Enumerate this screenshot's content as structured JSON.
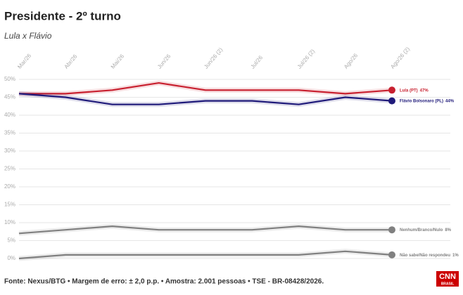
{
  "chart_data": {
    "type": "line",
    "title": "Presidente - 2º turno",
    "subtitle": "Lula x Flávio",
    "categories": [
      "Mar/26",
      "Abr/26",
      "Mai/26",
      "Jun/26",
      "Jun/26 (2)",
      "Jul/26",
      "Jul/26 (2)",
      "Ago/26",
      "Ago/26 (2)"
    ],
    "series": [
      {
        "name": "Lula (PT)",
        "color": "#c8202f",
        "values": [
          46,
          46,
          47,
          49,
          47,
          47,
          47,
          46,
          47
        ],
        "value_labels": [
          null,
          null,
          null,
          null,
          null,
          null,
          null,
          null,
          "47%"
        ]
      },
      {
        "name": "Flávio Bolsonaro (PL)",
        "color": "#1f1a7a",
        "values": [
          46,
          45,
          43,
          43,
          44,
          44,
          43,
          45,
          44
        ],
        "value_labels": [
          null,
          null,
          null,
          null,
          null,
          null,
          null,
          null,
          "44%"
        ]
      },
      {
        "name": "Nenhum/Branco/Nulo",
        "color": "#808080",
        "values": [
          7,
          8,
          9,
          8,
          8,
          8,
          9,
          8,
          8
        ],
        "value_labels": [
          null,
          null,
          null,
          null,
          null,
          null,
          null,
          null,
          "8%"
        ]
      },
      {
        "name": "Não sabe/Não respondeu",
        "color": "#808080",
        "values": [
          0,
          1,
          1,
          1,
          1,
          1,
          1,
          2,
          1
        ],
        "value_labels": [
          null,
          null,
          null,
          null,
          null,
          null,
          null,
          null,
          "1%"
        ]
      }
    ],
    "ylim": [
      0,
      50
    ],
    "yticks": [
      {
        "value": 0,
        "label": "0%"
      },
      {
        "value": 5,
        "label": "5%"
      },
      {
        "value": 10,
        "label": "10%"
      },
      {
        "value": 15,
        "label": "15%"
      },
      {
        "value": 20,
        "label": "20%"
      },
      {
        "value": 25,
        "label": "25%"
      },
      {
        "value": 30,
        "label": "30%"
      },
      {
        "value": 35,
        "label": "35%"
      },
      {
        "value": 40,
        "label": "40%"
      },
      {
        "value": 45,
        "label": "45%"
      },
      {
        "value": 50,
        "label": "50%"
      }
    ],
    "grid": true,
    "source": "Fonte: Nexus/BTG • Margem de erro: ± 2,0 p.p. • Amostra: 2.001 pessoas • TSE - BR-08428/2026.",
    "logo": {
      "name": "CNN",
      "sub": "BRASIL"
    }
  }
}
